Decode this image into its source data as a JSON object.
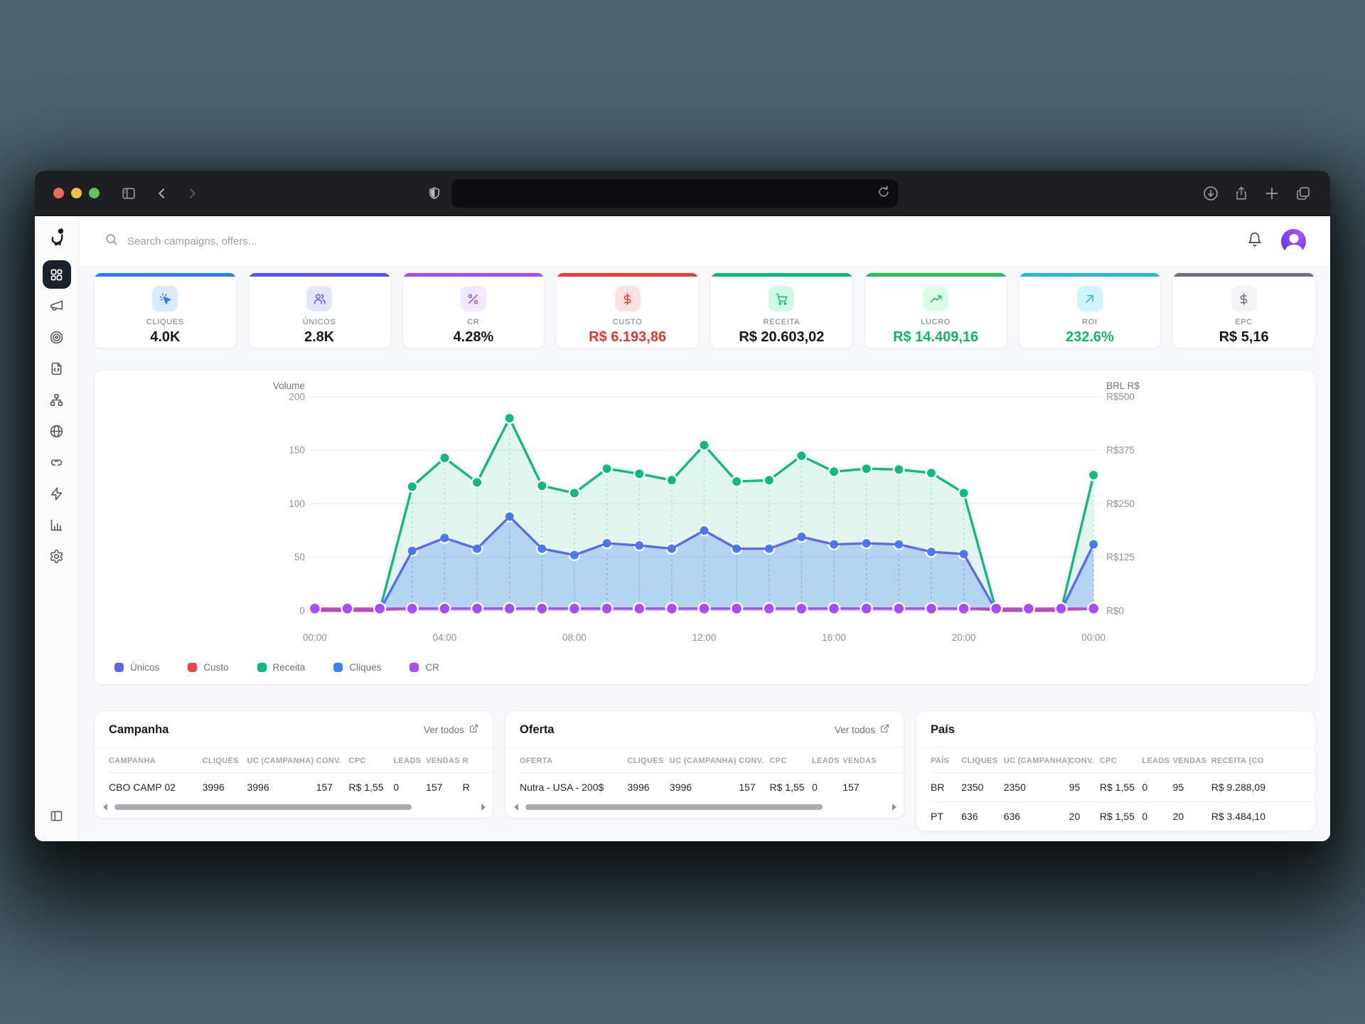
{
  "browser": {
    "url_value": ""
  },
  "header": {
    "search_placeholder": "Search campaigns, offers..."
  },
  "kpis": [
    {
      "label": "CLIQUES",
      "value": "4.0K",
      "accent": "#2f7df6",
      "chip_bg": "#dbeafe",
      "icon": "cursor-click",
      "value_color": "#16181d"
    },
    {
      "label": "ÚNICOS",
      "value": "2.8K",
      "accent": "#5b51f1",
      "chip_bg": "#e0e7ff",
      "icon": "users",
      "value_color": "#16181d"
    },
    {
      "label": "CR",
      "value": "4.28%",
      "accent": "#a64df5",
      "chip_bg": "#f3e8ff",
      "icon": "percent",
      "value_color": "#16181d"
    },
    {
      "label": "CUSTO",
      "value": "R$ 6.193,86",
      "accent": "#ef3b3b",
      "chip_bg": "#fee2e2",
      "icon": "dollar",
      "value_color": "#e53535"
    },
    {
      "label": "RECEITA",
      "value": "R$ 20.603,02",
      "accent": "#0fb97d",
      "chip_bg": "#d1fae5",
      "icon": "cart",
      "value_color": "#16181d"
    },
    {
      "label": "LUCRO",
      "value": "R$ 14.409,16",
      "accent": "#23c153",
      "chip_bg": "#dcfce7",
      "icon": "trend-up",
      "value_color": "#14b264"
    },
    {
      "label": "ROI",
      "value": "232.6%",
      "accent": "#2ab4ea",
      "chip_bg": "#cff5fe",
      "icon": "arrow-up-right",
      "value_color": "#14b264"
    },
    {
      "label": "EPC",
      "value": "R$ 5,16",
      "accent": "#6a6f7a",
      "chip_bg": "#f3f4f6",
      "icon": "dollar",
      "value_color": "#16181d"
    }
  ],
  "chart_data": {
    "type": "line",
    "x": [
      "00:00",
      "01:00",
      "02:00",
      "03:00",
      "04:00",
      "05:00",
      "06:00",
      "07:00",
      "08:00",
      "09:00",
      "10:00",
      "11:00",
      "12:00",
      "13:00",
      "14:00",
      "15:00",
      "16:00",
      "17:00",
      "18:00",
      "19:00",
      "20:00",
      "21:00",
      "22:00",
      "23:00",
      "00:00"
    ],
    "x_tick_labels": [
      "00:00",
      "04:00",
      "08:00",
      "12:00",
      "16:00",
      "20:00",
      "00:00"
    ],
    "left_axis": {
      "title": "Volume",
      "ticks": [
        0,
        50,
        100,
        150,
        200
      ],
      "max": 200
    },
    "right_axis": {
      "title": "BRL R$",
      "ticks": [
        "R$0",
        "R$125",
        "R$250",
        "R$375",
        "R$500"
      ],
      "max": 500
    },
    "grid": true,
    "legend_position": "bottom-left",
    "series": [
      {
        "name": "Únicos",
        "color": "#6366f1",
        "axis": "left",
        "fill": false,
        "dots": false,
        "draw": 3,
        "values": [
          0,
          0,
          0,
          56,
          68,
          58,
          88,
          58,
          52,
          63,
          61,
          58,
          75,
          58,
          58,
          69,
          62,
          63,
          62,
          55,
          53,
          0,
          0,
          0,
          62
        ]
      },
      {
        "name": "Custo",
        "color": "#ef4444",
        "axis": "right",
        "fill": false,
        "dots": false,
        "draw": 4,
        "values": [
          2,
          2,
          2,
          5,
          5,
          5,
          5,
          5,
          5,
          5,
          5,
          5,
          5,
          5,
          5,
          5,
          5,
          5,
          5,
          5,
          5,
          2,
          2,
          2,
          5
        ]
      },
      {
        "name": "Receita",
        "color": "#10b981",
        "axis": "right",
        "fill": true,
        "dots": true,
        "draw": 1,
        "values": [
          0,
          0,
          0,
          290,
          357,
          300,
          450,
          292,
          275,
          332,
          320,
          305,
          387,
          302,
          305,
          362,
          325,
          332,
          330,
          322,
          275,
          0,
          0,
          0,
          317
        ]
      },
      {
        "name": "Cliques",
        "color": "#3b82f6",
        "axis": "left",
        "fill": true,
        "dots": true,
        "draw": 2,
        "values": [
          0,
          0,
          0,
          56,
          68,
          58,
          88,
          58,
          52,
          63,
          61,
          58,
          75,
          58,
          58,
          69,
          62,
          63,
          62,
          55,
          53,
          0,
          0,
          0,
          62
        ]
      },
      {
        "name": "CR",
        "color": "#ab4bf2",
        "axis": "left",
        "fill": false,
        "dots": true,
        "draw": 5,
        "values": [
          2,
          2,
          2,
          2,
          2,
          2,
          2,
          2,
          2,
          2,
          2,
          2,
          2,
          2,
          2,
          2,
          2,
          2,
          2,
          2,
          2,
          2,
          2,
          2,
          2
        ]
      }
    ]
  },
  "tables": {
    "campanha": {
      "title": "Campanha",
      "ver_todos": "Ver todos",
      "headers": [
        "CAMPANHA",
        "CLIQUES",
        "UC (CAMPANHA)",
        "CONV.",
        "CPC",
        "LEADS",
        "VENDAS",
        "R"
      ],
      "col_pct": [
        23,
        11,
        17,
        8,
        11,
        8,
        9,
        13
      ],
      "width_pct": 110,
      "rows": [
        [
          "CBO CAMP 02",
          "3996",
          "3996",
          "157",
          "R$ 1,55",
          "0",
          "157",
          "R"
        ]
      ],
      "scrollbar": true
    },
    "oferta": {
      "title": "Oferta",
      "ver_todos": "Ver todos",
      "headers": [
        "OFERTA",
        "CLIQUES",
        "UC (CAMPANHA)",
        "CONV.",
        "CPC",
        "LEADS",
        "VENDAS"
      ],
      "col_pct": [
        28,
        11,
        18,
        8,
        11,
        8,
        16
      ],
      "width_pct": 104,
      "rows": [
        [
          "Nutra - USA - 200$",
          "3996",
          "3996",
          "157",
          "R$ 1,55",
          "0",
          "157"
        ]
      ],
      "scrollbar": true
    },
    "pais": {
      "title": "País",
      "headers": [
        "PAÍS",
        "CLIQUES",
        "UC (CAMPANHA)",
        "CONV.",
        "CPC",
        "LEADS",
        "VENDAS",
        "RECEITA (CO"
      ],
      "col_pct": [
        8,
        11,
        17,
        8,
        11,
        8,
        10,
        27
      ],
      "width_pct": 104,
      "rows": [
        [
          "BR",
          "2350",
          "2350",
          "95",
          "R$ 1,55",
          "0",
          "95",
          "R$ 9.288,09"
        ],
        [
          "PT",
          "636",
          "636",
          "20",
          "R$ 1,55",
          "0",
          "20",
          "R$ 3.484,10"
        ]
      ],
      "scrollbar": false
    }
  }
}
